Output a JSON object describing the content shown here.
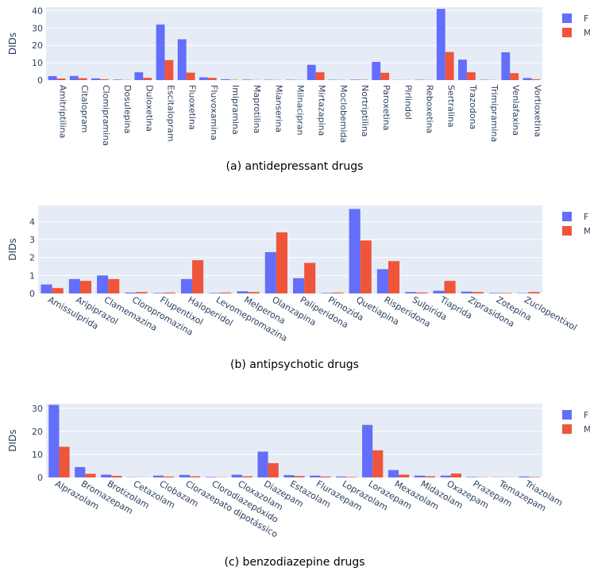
{
  "colors": {
    "F": "#636efa",
    "M": "#ef553b",
    "plot_bg": "#e5ecf6",
    "grid": "#ffffff"
  },
  "chart_data": [
    {
      "type": "bar",
      "caption_label": "(a)",
      "caption_text": "antidepressant drugs",
      "ylabel": "DIDs",
      "ylim": [
        0,
        42
      ],
      "yticks": [
        0,
        10,
        20,
        30,
        40
      ],
      "tick_rotation": 90,
      "legend": "top-right",
      "categories": [
        "Amitriptilina",
        "Citalopram",
        "Clomipramina",
        "Dosulepina",
        "Duloxetina",
        "Escitalopram",
        "Fluoxetina",
        "Fluvoxamina",
        "Imipramina",
        "Maprotilina",
        "Mianserina",
        "Milnacipran",
        "Mirtazapina",
        "Moclobemida",
        "Nortriptilina",
        "Paroxetina",
        "Pirlindol",
        "Reboxetina",
        "Sertralina",
        "Trazodona",
        "Trimipramina",
        "Venlafaxina",
        "Vortioxetina"
      ],
      "series": [
        {
          "name": "F",
          "values": [
            2.3,
            2.4,
            1.0,
            0.3,
            4.5,
            32.0,
            23.5,
            1.6,
            0.5,
            0.3,
            0.2,
            0.2,
            8.8,
            0.2,
            0.3,
            10.5,
            0.1,
            0.2,
            41.0,
            11.8,
            0.2,
            16.0,
            1.2
          ]
        },
        {
          "name": "M",
          "values": [
            0.9,
            1.1,
            0.5,
            0.1,
            1.3,
            11.5,
            4.3,
            1.3,
            0.2,
            0.1,
            0.1,
            0.1,
            4.5,
            0.1,
            0.2,
            4.2,
            0.05,
            0.1,
            16.2,
            4.5,
            0.1,
            4.0,
            0.5
          ]
        }
      ]
    },
    {
      "type": "bar",
      "caption_label": "(b)",
      "caption_text": "antipsychotic drugs",
      "ylabel": "DIDs",
      "ylim": [
        0,
        4.9
      ],
      "yticks": [
        0,
        1,
        2,
        3,
        4
      ],
      "tick_rotation": 30,
      "legend": "top-right",
      "categories": [
        "Amissulprida",
        "Aripiprazol",
        "Clamemazina",
        "Cloropromazina",
        "Flupentixol",
        "Haloperidol",
        "Levomepromazina",
        "Melperona",
        "Olanzapina",
        "Paliperidona",
        "Pimozida",
        "Quetiapina",
        "Risperidona",
        "Sulpirida",
        "Tiaprida",
        "Ziprasidona",
        "Zotepina",
        "Zuclopentixol"
      ],
      "series": [
        {
          "name": "F",
          "values": [
            0.5,
            0.8,
            1.0,
            0.05,
            0.03,
            0.8,
            0.03,
            0.12,
            2.3,
            0.85,
            0.03,
            4.7,
            1.35,
            0.08,
            0.15,
            0.1,
            0.03,
            0.02
          ]
        },
        {
          "name": "M",
          "values": [
            0.3,
            0.7,
            0.8,
            0.08,
            0.05,
            1.85,
            0.05,
            0.08,
            3.4,
            1.7,
            0.05,
            2.95,
            1.8,
            0.05,
            0.7,
            0.08,
            0.03,
            0.08
          ]
        }
      ]
    },
    {
      "type": "bar",
      "caption_label": "(c)",
      "caption_text": "benzodiazepine drugs",
      "ylabel": "DIDs",
      "ylim": [
        0,
        32
      ],
      "yticks": [
        0,
        10,
        20,
        30
      ],
      "tick_rotation": 30,
      "legend": "top-right",
      "categories": [
        "Alprazolam",
        "Bromazepam",
        "Brotizolam",
        "Cetazolam",
        "Clobazam",
        "Clorazepato dipotássico",
        "Clorodiazepóxido",
        "Cloxazolam",
        "Diazepam",
        "Estazolam",
        "Flurazepam",
        "Loprazolam",
        "Lorazepam",
        "Mexazolam",
        "Midazolam",
        "Oxazepam",
        "Prazepam",
        "Temazepam",
        "Triazolam"
      ],
      "series": [
        {
          "name": "F",
          "values": [
            31.5,
            4.5,
            1.2,
            0.1,
            0.8,
            1.1,
            0.2,
            1.2,
            11.2,
            1.0,
            0.8,
            0.4,
            22.8,
            3.2,
            0.8,
            0.8,
            0.2,
            0.1,
            0.4
          ]
        },
        {
          "name": "M",
          "values": [
            13.3,
            1.6,
            0.7,
            0.05,
            0.4,
            0.5,
            0.1,
            0.5,
            6.2,
            0.6,
            0.4,
            0.2,
            11.8,
            1.2,
            0.5,
            1.7,
            0.1,
            0.05,
            0.2
          ]
        }
      ]
    }
  ]
}
